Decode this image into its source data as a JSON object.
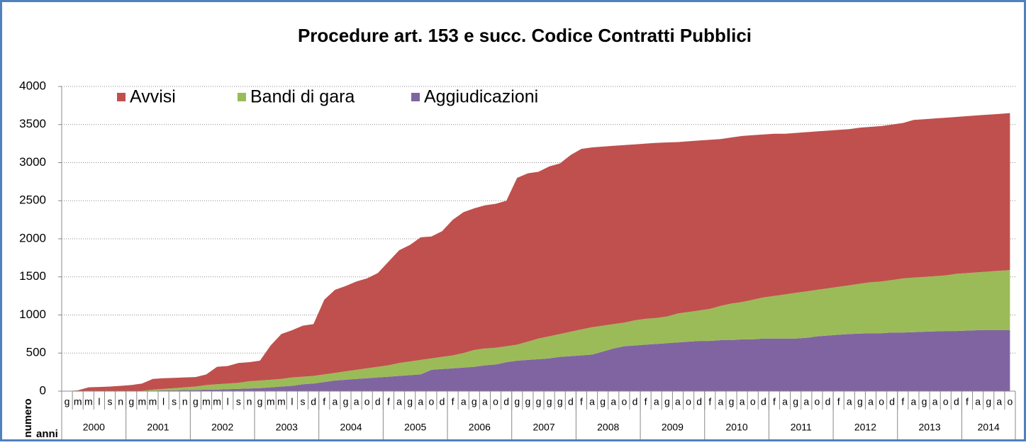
{
  "chart_data": {
    "type": "stacked_area",
    "title": "Procedure art. 153 e succ. Codice Contratti Pubblici",
    "ylabel": "numero",
    "xlabel": "anni",
    "years": [
      {
        "label": "2000",
        "months": [
          "g",
          "m",
          "m",
          "l",
          "s",
          "n"
        ]
      },
      {
        "label": "2001",
        "months": [
          "g",
          "m",
          "m",
          "l",
          "s",
          "n"
        ]
      },
      {
        "label": "2002",
        "months": [
          "g",
          "m",
          "m",
          "l",
          "s",
          "n"
        ]
      },
      {
        "label": "2003",
        "months": [
          "g",
          "m",
          "m",
          "l",
          "s",
          "d"
        ]
      },
      {
        "label": "2004",
        "months": [
          "f",
          "a",
          "g",
          "a",
          "o",
          "d"
        ]
      },
      {
        "label": "2005",
        "months": [
          "f",
          "a",
          "g",
          "a",
          "o",
          "d"
        ]
      },
      {
        "label": "2006",
        "months": [
          "f",
          "a",
          "g",
          "a",
          "o",
          "d"
        ]
      },
      {
        "label": "2007",
        "months": [
          "g",
          "g",
          "g",
          "g",
          "g",
          "d"
        ]
      },
      {
        "label": "2008",
        "months": [
          "f",
          "a",
          "g",
          "a",
          "o",
          "d"
        ]
      },
      {
        "label": "2009",
        "months": [
          "f",
          "a",
          "g",
          "a",
          "o",
          "d"
        ]
      },
      {
        "label": "2010",
        "months": [
          "f",
          "a",
          "g",
          "a",
          "o",
          "d"
        ]
      },
      {
        "label": "2011",
        "months": [
          "f",
          "a",
          "g",
          "a",
          "o",
          "d"
        ]
      },
      {
        "label": "2012",
        "months": [
          "f",
          "a",
          "g",
          "a",
          "o",
          "d"
        ]
      },
      {
        "label": "2013",
        "months": [
          "f",
          "a",
          "g",
          "a",
          "o",
          "d"
        ]
      },
      {
        "label": "2014",
        "months": [
          "f",
          "a",
          "g",
          "a",
          "o"
        ]
      }
    ],
    "series": [
      {
        "name": "Avvisi",
        "color": "#c0504d",
        "values": [
          0,
          10,
          50,
          55,
          60,
          70,
          80,
          95,
          140,
          140,
          135,
          130,
          125,
          140,
          230,
          230,
          260,
          250,
          260,
          450,
          590,
          620,
          670,
          680,
          980,
          1090,
          1120,
          1160,
          1180,
          1230,
          1360,
          1480,
          1530,
          1610,
          1600,
          1650,
          1780,
          1850,
          1860,
          1880,
          1890,
          1910,
          2190,
          2210,
          2190,
          2230,
          2240,
          2320,
          2370,
          2360,
          2350,
          2340,
          2330,
          2310,
          2300,
          2300,
          2285,
          2250,
          2240,
          2230,
          2220,
          2190,
          2180,
          2180,
          2160,
          2140,
          2130,
          2110,
          2100,
          2090,
          2080,
          2070,
          2060,
          2050,
          2050,
          2040,
          2040,
          2040,
          2040,
          2070,
          2070,
          2070,
          2070,
          2060,
          2060,
          2060,
          2060,
          2060,
          2060
        ]
      },
      {
        "name": "Bandi di gara",
        "color": "#9bbb59",
        "values": [
          0,
          0,
          0,
          0,
          0,
          0,
          0,
          5,
          15,
          20,
          30,
          35,
          45,
          60,
          70,
          75,
          80,
          95,
          100,
          100,
          100,
          110,
          100,
          100,
          100,
          100,
          110,
          120,
          130,
          140,
          150,
          170,
          180,
          190,
          150,
          160,
          170,
          190,
          220,
          220,
          220,
          210,
          210,
          240,
          270,
          290,
          300,
          320,
          340,
          360,
          340,
          320,
          310,
          330,
          340,
          340,
          350,
          380,
          390,
          400,
          420,
          450,
          480,
          490,
          520,
          540,
          560,
          580,
          600,
          610,
          610,
          620,
          630,
          640,
          655,
          670,
          680,
          690,
          710,
          715,
          720,
          725,
          730,
          750,
          755,
          760,
          770,
          780,
          790
        ]
      },
      {
        "name": "Aggiudicazioni",
        "color": "#8064a2",
        "values": [
          0,
          0,
          0,
          0,
          0,
          0,
          0,
          0,
          5,
          10,
          10,
          15,
          15,
          20,
          20,
          25,
          30,
          35,
          40,
          50,
          60,
          70,
          90,
          100,
          120,
          140,
          150,
          160,
          170,
          180,
          190,
          200,
          210,
          220,
          280,
          290,
          300,
          310,
          320,
          340,
          350,
          380,
          400,
          410,
          420,
          430,
          450,
          460,
          470,
          480,
          520,
          560,
          590,
          600,
          610,
          620,
          630,
          640,
          650,
          660,
          660,
          670,
          670,
          680,
          680,
          690,
          690,
          690,
          690,
          700,
          720,
          730,
          740,
          750,
          755,
          760,
          760,
          770,
          770,
          775,
          780,
          785,
          790,
          790,
          795,
          800,
          800,
          800,
          800
        ]
      }
    ],
    "ylim": [
      0,
      4000
    ],
    "yticks": [
      0,
      500,
      1000,
      1500,
      2000,
      2500,
      3000,
      3500,
      4000
    ],
    "grid": true,
    "legend": "top-left"
  }
}
